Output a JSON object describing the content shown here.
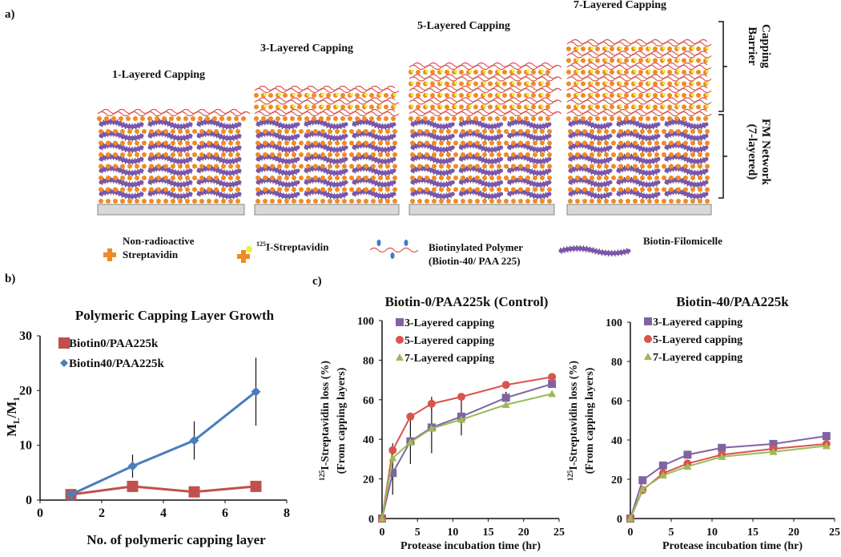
{
  "panel_a": {
    "label": "a)",
    "stacks": [
      {
        "title": "1-Layered Capping",
        "capping_layers": 1
      },
      {
        "title": "3-Layered Capping",
        "capping_layers": 3
      },
      {
        "title": "5-Layered Capping",
        "capping_layers": 5
      },
      {
        "title": "7-Layered Capping",
        "capping_layers": 7
      }
    ],
    "bracket_capping": [
      "Capping",
      "Barrier"
    ],
    "bracket_network": [
      "FM Network",
      "(7-layered)"
    ],
    "legend": {
      "nonradio": [
        "Non-radioactive",
        "Streptavidin"
      ],
      "radio_sup": "125",
      "radio": "I-Streptavidin",
      "polymer": [
        "Biotinylated Polymer",
        "(Biotin-40/ PAA 225)"
      ],
      "filomicelle": "Biotin-Filomicelle"
    },
    "colors": {
      "streptavidin": "#f08a24",
      "polymer": "#d9544f",
      "biotin": "#3a7fc4",
      "filomicelle": "#7b55b0",
      "radio": "#e8f03a"
    }
  },
  "panel_b_label": "b)",
  "panel_c_label": "c)",
  "y_sup": "125",
  "chart_data": [
    {
      "id": "b",
      "type": "line",
      "title": "Polymeric Capping Layer Growth",
      "xlabel": "No. of polymeric capping layer",
      "ylabel": "ML/M1",
      "ylabel_main": "M",
      "ylabel_sub1": "L",
      "ylabel_mid": "/M",
      "ylabel_sub2": "1",
      "xlim": [
        0,
        8
      ],
      "ylim": [
        0,
        30
      ],
      "xticks": [
        0,
        2,
        4,
        6,
        8
      ],
      "yticks": [
        0,
        10,
        20,
        30
      ],
      "legend_position": "top-left",
      "series": [
        {
          "name": "Biotin0/PAA225k",
          "color": "#c0504d",
          "marker": "square",
          "x": [
            1,
            3,
            5,
            7
          ],
          "y": [
            1,
            2.5,
            1.5,
            2.5
          ],
          "err": [
            0,
            0,
            0,
            0
          ]
        },
        {
          "name": "Biotin40/PAA225k",
          "color": "#4a7ebb",
          "marker": "diamond",
          "x": [
            1,
            3,
            5,
            7
          ],
          "y": [
            1,
            6.2,
            10.9,
            19.8
          ],
          "err": [
            0,
            2.1,
            3.5,
            6.2
          ]
        }
      ]
    },
    {
      "id": "c1",
      "type": "line",
      "title": "Biotin-0/PAA225k  (Control)",
      "xlabel": "Protease incubation time (hr)",
      "ylabel": [
        "I-Streptavidin loss  (%)",
        "(From capping layers)"
      ],
      "xlim": [
        0,
        25
      ],
      "ylim": [
        0,
        100
      ],
      "xticks": [
        0,
        5,
        10,
        15,
        20,
        25
      ],
      "yticks": [
        0,
        20,
        40,
        60,
        80,
        100
      ],
      "legend_position": "top-left",
      "series": [
        {
          "name": "3-Layered capping",
          "color": "#8064a2",
          "marker": "square",
          "x": [
            0,
            1.5,
            4,
            7,
            11.2,
            17.5,
            24
          ],
          "y": [
            0,
            23,
            39,
            46,
            51.5,
            61,
            68
          ],
          "err": [
            0,
            11,
            11.5,
            13,
            9.5,
            3,
            1
          ]
        },
        {
          "name": "5-Layered capping",
          "color": "#d9534f",
          "marker": "circle",
          "x": [
            0,
            1.5,
            4,
            7,
            11.2,
            17.5,
            24
          ],
          "y": [
            0,
            34.5,
            51.5,
            58,
            61.5,
            67.5,
            71.5
          ],
          "err": [
            0,
            3.5,
            0,
            3.5,
            0,
            0,
            0
          ]
        },
        {
          "name": "7-Layered capping",
          "color": "#9bbb59",
          "marker": "triangle",
          "x": [
            0,
            1.5,
            4,
            7,
            11.2,
            17.5,
            24
          ],
          "y": [
            0,
            30.5,
            38.5,
            45.5,
            50,
            57.5,
            63
          ],
          "err": [
            0,
            0,
            0,
            0,
            0,
            0,
            0
          ]
        }
      ]
    },
    {
      "id": "c2",
      "type": "line",
      "title": "Biotin-40/PAA225k",
      "xlabel": "Protease incubation time (hr)",
      "ylabel": [
        "I-Streptavidin loss  (%)",
        "(From capping layers)"
      ],
      "xlim": [
        0,
        25
      ],
      "ylim": [
        0,
        100
      ],
      "xticks": [
        0,
        5,
        10,
        15,
        20,
        25
      ],
      "yticks": [
        0,
        20,
        40,
        60,
        80,
        100
      ],
      "legend_position": "top-left",
      "series": [
        {
          "name": "3-Layered capping",
          "color": "#8064a2",
          "marker": "square",
          "x": [
            0,
            1.5,
            4,
            7,
            11.2,
            17.5,
            24
          ],
          "y": [
            0,
            19.5,
            27,
            32.5,
            36,
            38,
            42
          ],
          "err": [
            0,
            0,
            0,
            1.5,
            0,
            0,
            0
          ]
        },
        {
          "name": "5-Layered capping",
          "color": "#d9534f",
          "marker": "circle",
          "x": [
            0,
            1.5,
            4,
            7,
            11.2,
            17.5,
            24
          ],
          "y": [
            0,
            14.5,
            23,
            28,
            32.5,
            35.5,
            38
          ],
          "err": [
            0,
            0,
            0,
            0,
            0,
            0,
            0
          ]
        },
        {
          "name": "7-Layered capping",
          "color": "#9bbb59",
          "marker": "triangle",
          "x": [
            0,
            1.5,
            4,
            7,
            11.2,
            17.5,
            24
          ],
          "y": [
            0,
            15,
            22,
            26.5,
            31.5,
            34,
            37
          ],
          "err": [
            0,
            0,
            0,
            0,
            0,
            0,
            0
          ]
        }
      ]
    }
  ]
}
